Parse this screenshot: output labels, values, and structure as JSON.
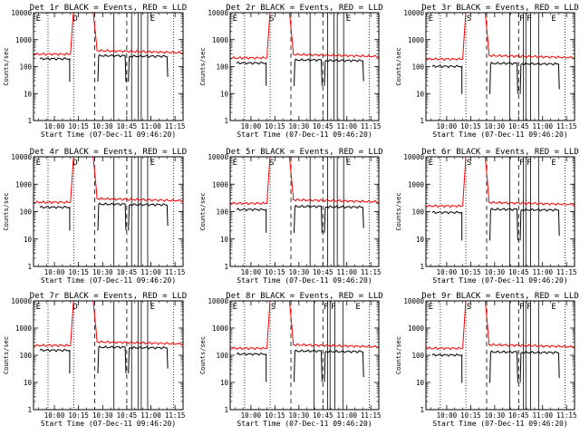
{
  "chart_data": {
    "type": "line",
    "y_scale": "log",
    "ylim": [
      1,
      10000
    ],
    "y_ticks": [
      "1",
      "10",
      "100",
      "1000",
      "10000"
    ],
    "x_ticks": [
      "10:00",
      "10:15",
      "10:30",
      "10:45",
      "11:00",
      "11:15"
    ],
    "xlabel": "Start Time (07-Dec-11 09:46:20)",
    "ylabel": "Counts/sec",
    "colors": {
      "events": "#000000",
      "lld": "#ff0000",
      "frame": "#000000"
    },
    "panels": [
      {
        "title": "Det 1r BLACK = Events, RED = LLD",
        "markers": [
          "E",
          "D",
          "E"
        ],
        "events_base": 230,
        "lld_base": 290,
        "dip_depth": 0.12
      },
      {
        "title": "Det 2r BLACK = Events, RED = LLD",
        "markers": [
          "E",
          "S",
          "E"
        ],
        "events_base": 160,
        "lld_base": 210,
        "dip_depth": 0.12
      },
      {
        "title": "Det 3r BLACK = Events, RED = LLD",
        "markers": [
          "E",
          "S",
          "F",
          "F",
          "E"
        ],
        "events_base": 120,
        "lld_base": 190,
        "dip_depth": 0.08
      },
      {
        "title": "Det 4r BLACK = Events, RED = LLD",
        "markers": [
          "E",
          "D",
          "E"
        ],
        "events_base": 170,
        "lld_base": 220,
        "dip_depth": 0.12
      },
      {
        "title": "Det 5r BLACK = Events, RED = LLD",
        "markers": [
          "E",
          "S",
          "E"
        ],
        "events_base": 140,
        "lld_base": 200,
        "dip_depth": 0.12
      },
      {
        "title": "Det 6r BLACK = Events, RED = LLD",
        "markers": [
          "E",
          "S",
          "F",
          "F",
          "E"
        ],
        "events_base": 110,
        "lld_base": 160,
        "dip_depth": 0.08
      },
      {
        "title": "Det 7r BLACK = Events, RED = LLD",
        "markers": [
          "E",
          "D",
          "E"
        ],
        "events_base": 180,
        "lld_base": 230,
        "dip_depth": 0.12
      },
      {
        "title": "Det 8r BLACK = Events, RED = LLD",
        "markers": [
          "E",
          "S",
          "F",
          "F",
          "E"
        ],
        "events_base": 130,
        "lld_base": 180,
        "dip_depth": 0.08
      },
      {
        "title": "Det 9r BLACK = Events, RED = LLD",
        "markers": [
          "E",
          "S",
          "F",
          "F",
          "E"
        ],
        "events_base": 120,
        "lld_base": 180,
        "dip_depth": 0.08
      }
    ]
  }
}
